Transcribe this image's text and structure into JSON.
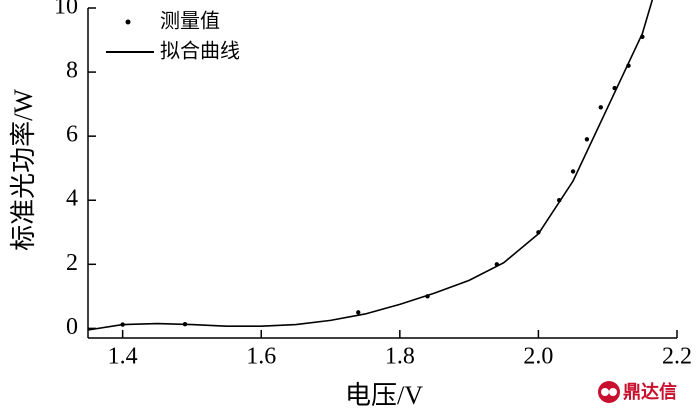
{
  "chart_data": {
    "type": "combo",
    "x_label": "电压/V",
    "y_label": "标准光功率/W",
    "xlim": [
      1.35,
      2.2
    ],
    "ylim": [
      -0.3,
      10
    ],
    "xticks": [
      1.4,
      1.6,
      1.8,
      {
        "value": 2,
        "label": "2.0"
      },
      2.2
    ],
    "yticks": [
      0,
      2,
      4,
      6,
      8,
      10
    ],
    "legend": "top-left",
    "series": [
      {
        "name": "测量值",
        "type": "scatter",
        "color": "#000000",
        "x": [
          1.4,
          1.49,
          1.74,
          1.84,
          1.94,
          2.0,
          2.03,
          2.05,
          2.07,
          2.09,
          2.11,
          2.13,
          2.15
        ],
        "values": [
          0.12,
          0.13,
          0.5,
          1.0,
          2.0,
          3.0,
          4.0,
          4.9,
          5.9,
          6.9,
          7.5,
          8.2,
          9.1
        ]
      },
      {
        "name": "拟合曲线",
        "type": "line",
        "color": "#000000",
        "x": [
          1.35,
          1.4,
          1.45,
          1.5,
          1.55,
          1.6,
          1.65,
          1.7,
          1.75,
          1.8,
          1.85,
          1.9,
          1.95,
          2.0,
          2.05,
          2.1,
          2.15,
          2.165
        ],
        "values": [
          -0.05,
          0.12,
          0.15,
          0.12,
          0.07,
          0.07,
          0.12,
          0.25,
          0.45,
          0.75,
          1.1,
          1.5,
          2.05,
          2.95,
          4.6,
          6.9,
          9.2,
          10.3
        ]
      }
    ]
  },
  "watermark": "鼎达信"
}
